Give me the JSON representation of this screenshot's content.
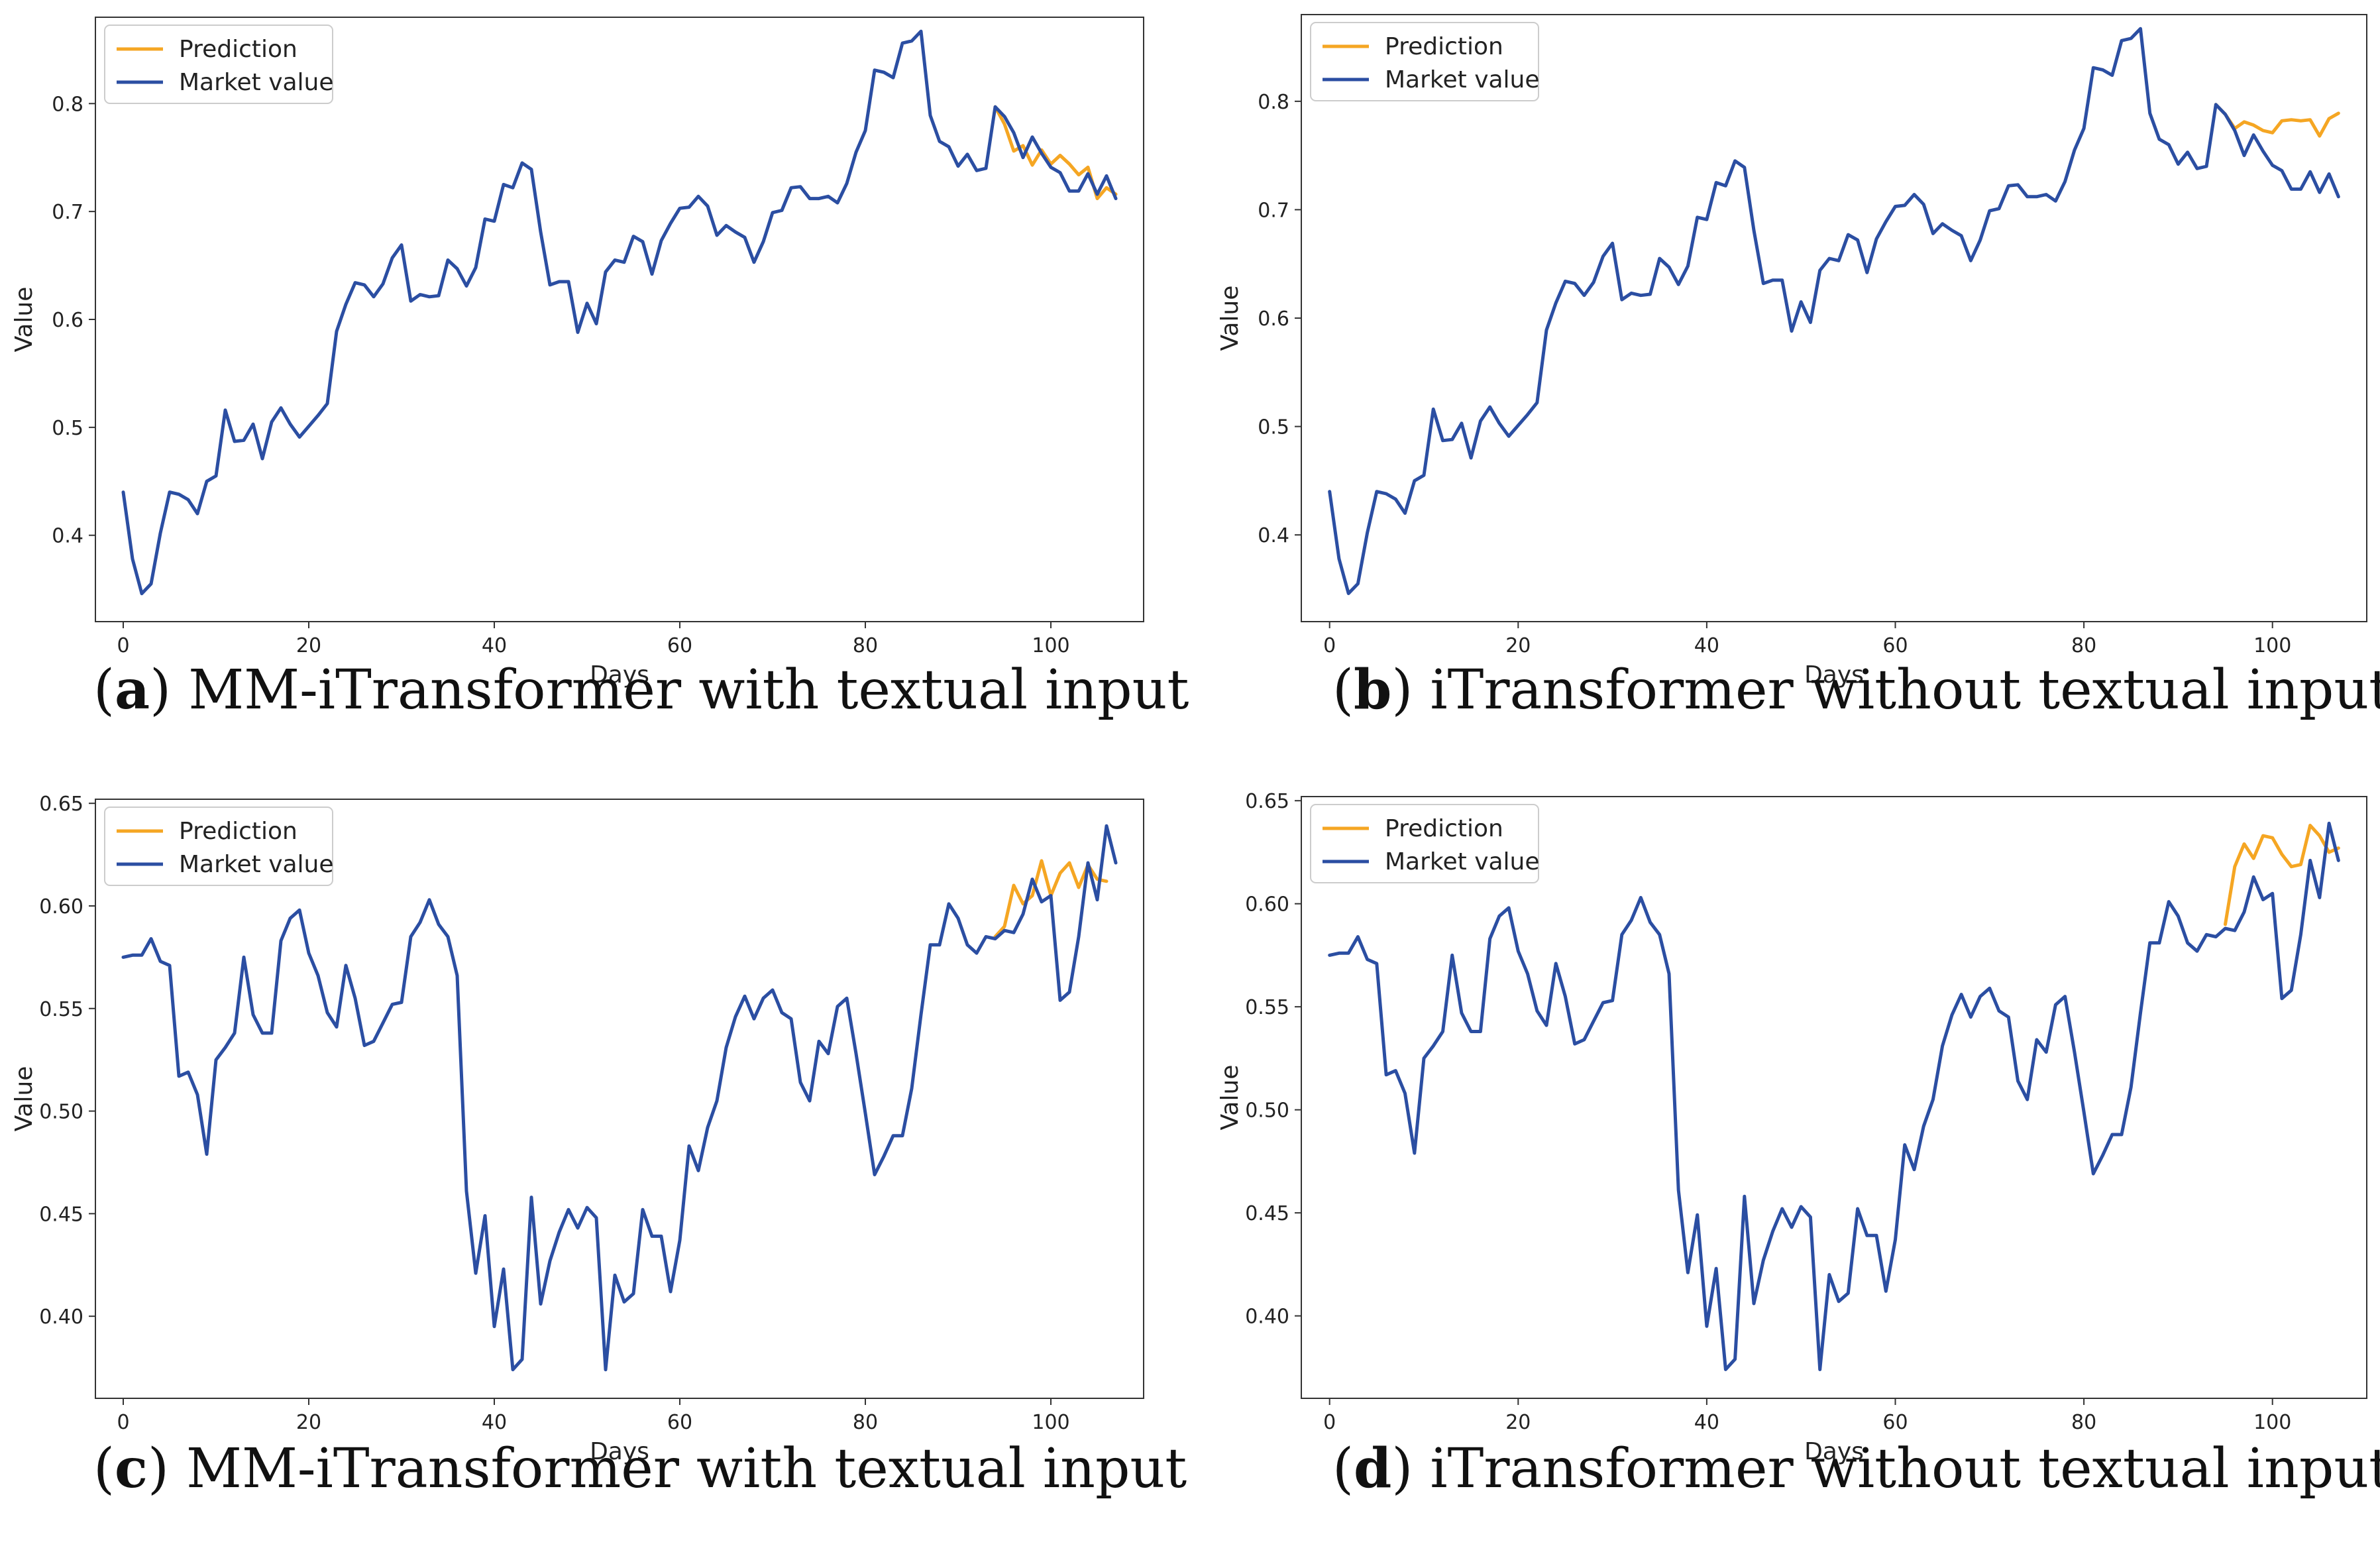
{
  "colors": {
    "prediction": "#f5a623",
    "market": "#2b4ea2",
    "axis": "#333333"
  },
  "legend": {
    "prediction": "Prediction",
    "market": "Market value"
  },
  "captions": [
    {
      "letter": "a",
      "text": " MM-iTransformer with textual input"
    },
    {
      "letter": "b",
      "text": " iTransformer without textual input"
    },
    {
      "letter": "c",
      "text": " MM-iTransformer with textual input"
    },
    {
      "letter": "d",
      "text": " iTransformer without textual input"
    }
  ],
  "chart_data": [
    {
      "type": "line",
      "title": "",
      "xlabel": "Days",
      "ylabel": "Value",
      "xlim": [
        -3,
        110
      ],
      "ylim": [
        0.32,
        0.88
      ],
      "xticks": [
        0,
        20,
        40,
        60,
        80,
        100
      ],
      "yticks": [
        0.4,
        0.5,
        0.6,
        0.7,
        0.8
      ],
      "ytick_labels": [
        "0.4",
        "0.5",
        "0.6",
        "0.7",
        "0.8"
      ],
      "legend_position": "top-left",
      "series": [
        {
          "name": "Prediction",
          "x_start": 94,
          "values": [
            0.797,
            0.781,
            0.756,
            0.761,
            0.743,
            0.757,
            0.744,
            0.752,
            0.744,
            0.734,
            0.741,
            0.712,
            0.722,
            0.716
          ]
        },
        {
          "name": "Market value",
          "x_start": 0,
          "values": [
            0.44,
            0.378,
            0.346,
            0.355,
            0.402,
            0.44,
            0.438,
            0.433,
            0.42,
            0.45,
            0.455,
            0.516,
            0.487,
            0.488,
            0.503,
            0.471,
            0.505,
            0.518,
            0.503,
            0.491,
            0.501,
            0.511,
            0.522,
            0.589,
            0.614,
            0.634,
            0.632,
            0.621,
            0.633,
            0.657,
            0.669,
            0.617,
            0.623,
            0.621,
            0.622,
            0.655,
            0.647,
            0.631,
            0.648,
            0.693,
            0.691,
            0.725,
            0.722,
            0.745,
            0.739,
            0.681,
            0.632,
            0.635,
            0.635,
            0.588,
            0.615,
            0.596,
            0.644,
            0.655,
            0.653,
            0.677,
            0.672,
            0.642,
            0.673,
            0.689,
            0.703,
            0.704,
            0.714,
            0.705,
            0.678,
            0.687,
            0.681,
            0.676,
            0.653,
            0.672,
            0.699,
            0.701,
            0.722,
            0.723,
            0.712,
            0.712,
            0.714,
            0.708,
            0.726,
            0.755,
            0.775,
            0.831,
            0.829,
            0.824,
            0.856,
            0.858,
            0.867,
            0.789,
            0.765,
            0.76,
            0.742,
            0.753,
            0.738,
            0.74,
            0.797,
            0.788,
            0.773,
            0.75,
            0.769,
            0.754,
            0.741,
            0.736,
            0.719,
            0.719,
            0.735,
            0.716,
            0.733,
            0.712
          ]
        }
      ]
    },
    {
      "type": "line",
      "title": "",
      "xlabel": "Days",
      "ylabel": "Value",
      "xlim": [
        -3,
        110
      ],
      "ylim": [
        0.32,
        0.88
      ],
      "xticks": [
        0,
        20,
        40,
        60,
        80,
        100
      ],
      "yticks": [
        0.4,
        0.5,
        0.6,
        0.7,
        0.8
      ],
      "ytick_labels": [
        "0.4",
        "0.5",
        "0.6",
        "0.7",
        "0.8"
      ],
      "legend_position": "top-left",
      "series": [
        {
          "name": "Prediction",
          "x_start": 94,
          "values": [
            0.797,
            0.788,
            0.775,
            0.781,
            0.778,
            0.773,
            0.771,
            0.782,
            0.783,
            0.782,
            0.783,
            0.768,
            0.784,
            0.789
          ]
        },
        {
          "name": "Market value",
          "x_start": 0,
          "values": [
            0.44,
            0.378,
            0.346,
            0.355,
            0.402,
            0.44,
            0.438,
            0.433,
            0.42,
            0.45,
            0.455,
            0.516,
            0.487,
            0.488,
            0.503,
            0.471,
            0.505,
            0.518,
            0.503,
            0.491,
            0.501,
            0.511,
            0.522,
            0.589,
            0.614,
            0.634,
            0.632,
            0.621,
            0.633,
            0.657,
            0.669,
            0.617,
            0.623,
            0.621,
            0.622,
            0.655,
            0.647,
            0.631,
            0.648,
            0.693,
            0.691,
            0.725,
            0.722,
            0.745,
            0.739,
            0.681,
            0.632,
            0.635,
            0.635,
            0.588,
            0.615,
            0.596,
            0.644,
            0.655,
            0.653,
            0.677,
            0.672,
            0.642,
            0.673,
            0.689,
            0.703,
            0.704,
            0.714,
            0.705,
            0.678,
            0.687,
            0.681,
            0.676,
            0.653,
            0.672,
            0.699,
            0.701,
            0.722,
            0.723,
            0.712,
            0.712,
            0.714,
            0.708,
            0.726,
            0.755,
            0.775,
            0.831,
            0.829,
            0.824,
            0.856,
            0.858,
            0.867,
            0.789,
            0.765,
            0.76,
            0.742,
            0.753,
            0.738,
            0.74,
            0.797,
            0.788,
            0.773,
            0.75,
            0.769,
            0.754,
            0.741,
            0.736,
            0.719,
            0.719,
            0.735,
            0.716,
            0.733,
            0.712
          ]
        }
      ]
    },
    {
      "type": "line",
      "title": "",
      "xlabel": "Days",
      "ylabel": "Value",
      "xlim": [
        -3,
        110
      ],
      "ylim": [
        0.36,
        0.652
      ],
      "xticks": [
        0,
        20,
        40,
        60,
        80,
        100
      ],
      "yticks": [
        0.4,
        0.45,
        0.5,
        0.55,
        0.6,
        0.65
      ],
      "ytick_labels": [
        "0.40",
        "0.45",
        "0.50",
        "0.55",
        "0.60",
        "0.65"
      ],
      "legend_position": "top-left",
      "series": [
        {
          "name": "Prediction",
          "x_start": 94,
          "values": [
            0.585,
            0.59,
            0.61,
            0.601,
            0.605,
            0.622,
            0.605,
            0.616,
            0.621,
            0.609,
            0.62,
            0.613,
            0.612
          ]
        },
        {
          "name": "Market value",
          "x_start": 0,
          "values": [
            0.575,
            0.576,
            0.576,
            0.584,
            0.573,
            0.571,
            0.517,
            0.519,
            0.508,
            0.479,
            0.525,
            0.531,
            0.538,
            0.575,
            0.547,
            0.538,
            0.538,
            0.583,
            0.594,
            0.598,
            0.577,
            0.566,
            0.548,
            0.541,
            0.571,
            0.555,
            0.532,
            0.534,
            0.543,
            0.552,
            0.553,
            0.585,
            0.592,
            0.603,
            0.591,
            0.585,
            0.566,
            0.461,
            0.421,
            0.449,
            0.395,
            0.423,
            0.374,
            0.379,
            0.458,
            0.406,
            0.427,
            0.441,
            0.452,
            0.443,
            0.453,
            0.448,
            0.374,
            0.42,
            0.407,
            0.411,
            0.452,
            0.439,
            0.439,
            0.412,
            0.437,
            0.483,
            0.471,
            0.492,
            0.505,
            0.531,
            0.546,
            0.556,
            0.545,
            0.555,
            0.559,
            0.548,
            0.545,
            0.514,
            0.505,
            0.534,
            0.528,
            0.551,
            0.555,
            0.528,
            0.499,
            0.469,
            0.478,
            0.488,
            0.488,
            0.511,
            0.547,
            0.581,
            0.581,
            0.601,
            0.594,
            0.581,
            0.577,
            0.585,
            0.584,
            0.588,
            0.587,
            0.596,
            0.613,
            0.602,
            0.605,
            0.554,
            0.558,
            0.585,
            0.621,
            0.603,
            0.639,
            0.621
          ]
        }
      ]
    },
    {
      "type": "line",
      "title": "",
      "xlabel": "Days",
      "ylabel": "Value",
      "xlim": [
        -3,
        110
      ],
      "ylim": [
        0.36,
        0.652
      ],
      "xticks": [
        0,
        20,
        40,
        60,
        80,
        100
      ],
      "yticks": [
        0.4,
        0.45,
        0.5,
        0.55,
        0.6,
        0.65
      ],
      "ytick_labels": [
        "0.40",
        "0.45",
        "0.50",
        "0.55",
        "0.60",
        "0.65"
      ],
      "legend_position": "top-left",
      "series": [
        {
          "name": "Prediction",
          "x_start": 95,
          "values": [
            0.59,
            0.618,
            0.629,
            0.622,
            0.633,
            0.632,
            0.624,
            0.618,
            0.619,
            0.638,
            0.633,
            0.625,
            0.627
          ]
        },
        {
          "name": "Market value",
          "x_start": 0,
          "values": [
            0.575,
            0.576,
            0.576,
            0.584,
            0.573,
            0.571,
            0.517,
            0.519,
            0.508,
            0.479,
            0.525,
            0.531,
            0.538,
            0.575,
            0.547,
            0.538,
            0.538,
            0.583,
            0.594,
            0.598,
            0.577,
            0.566,
            0.548,
            0.541,
            0.571,
            0.555,
            0.532,
            0.534,
            0.543,
            0.552,
            0.553,
            0.585,
            0.592,
            0.603,
            0.591,
            0.585,
            0.566,
            0.461,
            0.421,
            0.449,
            0.395,
            0.423,
            0.374,
            0.379,
            0.458,
            0.406,
            0.427,
            0.441,
            0.452,
            0.443,
            0.453,
            0.448,
            0.374,
            0.42,
            0.407,
            0.411,
            0.452,
            0.439,
            0.439,
            0.412,
            0.437,
            0.483,
            0.471,
            0.492,
            0.505,
            0.531,
            0.546,
            0.556,
            0.545,
            0.555,
            0.559,
            0.548,
            0.545,
            0.514,
            0.505,
            0.534,
            0.528,
            0.551,
            0.555,
            0.528,
            0.499,
            0.469,
            0.478,
            0.488,
            0.488,
            0.511,
            0.547,
            0.581,
            0.581,
            0.601,
            0.594,
            0.581,
            0.577,
            0.585,
            0.584,
            0.588,
            0.587,
            0.596,
            0.613,
            0.602,
            0.605,
            0.554,
            0.558,
            0.585,
            0.621,
            0.603,
            0.639,
            0.621
          ]
        }
      ]
    }
  ]
}
